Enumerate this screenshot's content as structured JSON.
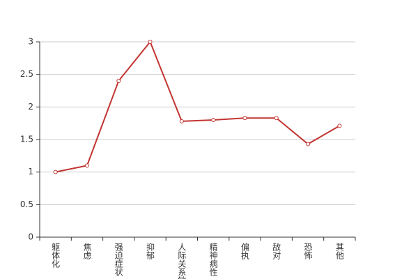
{
  "chart_data": {
    "type": "line",
    "categories": [
      "躯体化",
      "焦虑",
      "强迫症状",
      "抑郁",
      "人际关系敏感",
      "精神病性",
      "偏执",
      "敌对",
      "恐怖",
      "其他"
    ],
    "values": [
      1.0,
      1.1,
      2.4,
      3.0,
      1.78,
      1.8,
      1.83,
      1.83,
      1.43,
      1.71
    ],
    "color": "#c23531",
    "ylim": [
      0,
      3
    ],
    "yticks": [
      0,
      0.5,
      1,
      1.5,
      2,
      2.5,
      3
    ],
    "grid": true
  }
}
